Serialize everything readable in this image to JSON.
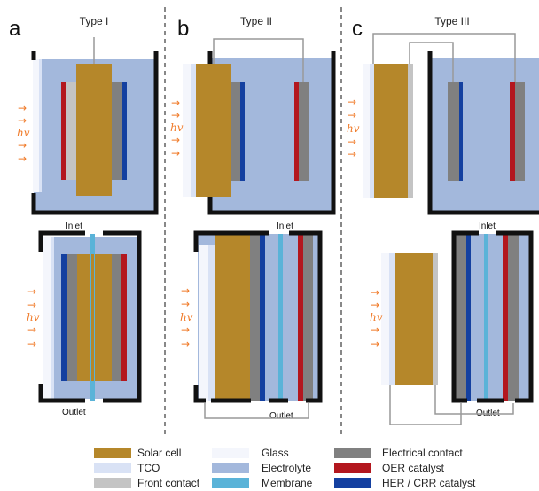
{
  "panels": [
    {
      "letter": "a",
      "title": "Type I",
      "inlet": "Inlet",
      "outlet": "Outlet"
    },
    {
      "letter": "b",
      "title": "Type II",
      "inlet": "Inlet",
      "outlet": "Outlet"
    },
    {
      "letter": "c",
      "title": "Type III",
      "inlet": "Inlet",
      "outlet": "Outlet"
    }
  ],
  "light": {
    "label": "hv",
    "arrow": "→"
  },
  "legend": [
    {
      "label": "Solar cell",
      "color": "#b5872a"
    },
    {
      "label": "TCO",
      "color": "#d9e2f5"
    },
    {
      "label": "Front contact",
      "color": "#c4c4c4"
    },
    {
      "label": "Glass",
      "color": "#f4f6fc"
    },
    {
      "label": "Electrolyte",
      "color": "#a3b8dc"
    },
    {
      "label": "Membrane",
      "color": "#5ab3d8"
    },
    {
      "label": "Electrical contact",
      "color": "#808080"
    },
    {
      "label": "OER catalyst",
      "color": "#b3171e"
    },
    {
      "label": "HER / CRR catalyst",
      "color": "#1440a0"
    }
  ],
  "colors": {
    "solar": "#b5872a",
    "tco": "#d9e2f5",
    "front": "#c4c4c4",
    "glass": "#f4f6fc",
    "electrolyte": "#a3b8dc",
    "membrane": "#5ab3d8",
    "contact": "#808080",
    "oer": "#b3171e",
    "her": "#1440a0",
    "wall": "#111111",
    "wire": "#999999",
    "light": "#f07a28"
  }
}
